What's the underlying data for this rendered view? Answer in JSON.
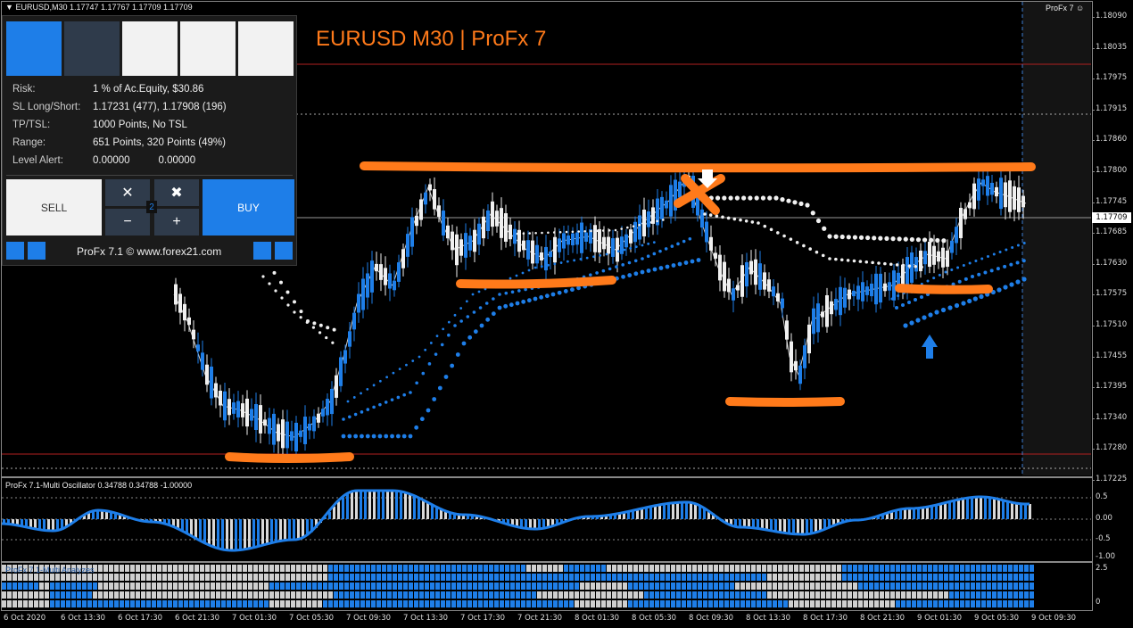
{
  "window": {
    "symbol_header": "EURUSD,M30  1.17747 1.17767 1.17709 1.17709",
    "corner_label": "ProFx 7 ☺",
    "chart_title": "EURUSD M30 | ProFx 7"
  },
  "colors": {
    "accent_blue": "#1e7ee8",
    "orange": "#ff7a1a",
    "candle_white": "#f0f0f0",
    "grid_red": "#b02020",
    "panel_bg": "#1b1b1b"
  },
  "panel": {
    "info": [
      {
        "label": "Risk:",
        "value": "1 % of Ac.Equity, $30.86"
      },
      {
        "label": "SL Long/Short:",
        "value": "1.17231 (477), 1.17908 (196)"
      },
      {
        "label": "TP/TSL:",
        "value": "1000 Points, No TSL"
      },
      {
        "label": "Range:",
        "value": "651 Points, 320 Points (49%)"
      },
      {
        "label": "Level Alert:",
        "value": "0.00000          0.00000"
      }
    ],
    "sell_label": "SELL",
    "buy_label": "BUY",
    "lot_value": "2",
    "minus_label": "−",
    "plus_label": "+",
    "close_x_label": "✕",
    "close_all_label": "✖",
    "footer_text": "ProFx 7.1 © www.forex21.com"
  },
  "price_axis": {
    "labels": [
      "1.18090",
      "1.18035",
      "1.17975",
      "1.17915",
      "1.17860",
      "1.17800",
      "1.17745",
      "1.17685",
      "1.17630",
      "1.17575",
      "1.17510",
      "1.17455",
      "1.17395",
      "1.17340",
      "1.17280",
      "1.17225"
    ],
    "current_price": "1.17709"
  },
  "oscillator": {
    "title": "ProFx 7.1-Multi Oscillator 0.34788 0.34788 -1.00000",
    "levels": [
      "0.5",
      "0.00",
      "-0.5",
      "-1.00"
    ]
  },
  "analyzer": {
    "title": "ProFx 7.1-Multi Analyzes",
    "levels": [
      "2.5",
      "0"
    ]
  },
  "time_axis": {
    "labels": [
      "6 Oct 2020",
      "6 Oct 13:30",
      "6 Oct 17:30",
      "6 Oct 21:30",
      "7 Oct 01:30",
      "7 Oct 05:30",
      "7 Oct 09:30",
      "7 Oct 13:30",
      "7 Oct 17:30",
      "7 Oct 21:30",
      "8 Oct 01:30",
      "8 Oct 05:30",
      "8 Oct 09:30",
      "8 Oct 13:30",
      "8 Oct 17:30",
      "8 Oct 21:30",
      "9 Oct 01:30",
      "9 Oct 05:30",
      "9 Oct 09:30"
    ]
  }
}
